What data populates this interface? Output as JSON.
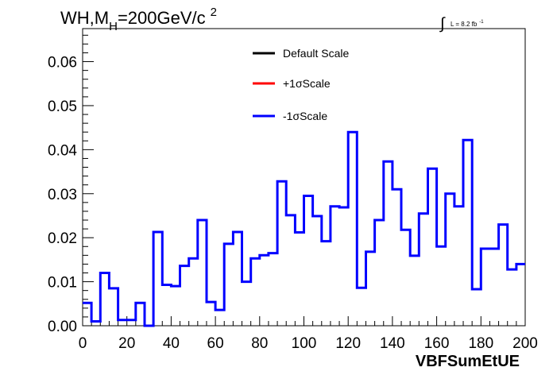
{
  "chart_data": {
    "type": "line",
    "title": "WH,M",
    "title_sub": "H",
    "title_rest": "=200GeV/c",
    "title_sup": "2",
    "lumi_prefix": "∫",
    "lumi_text": "L = 8.2 fb",
    "lumi_sup": "-1",
    "xlabel": "VBFSumEtUE",
    "ylabel": "",
    "xlim": [
      0,
      200
    ],
    "ylim": [
      0,
      0.0675
    ],
    "x_ticks": [
      0,
      20,
      40,
      60,
      80,
      100,
      120,
      140,
      160,
      180,
      200
    ],
    "y_ticks": [
      "0.00",
      "0.01",
      "0.02",
      "0.03",
      "0.04",
      "0.05",
      "0.06"
    ],
    "bin_width": 4,
    "legend_position": "top-center",
    "legend": [
      {
        "name": "Default Scale",
        "color": "#000000"
      },
      {
        "name": "+1σScale",
        "color": "#ff0000"
      },
      {
        "name": "-1σScale",
        "color": "#0000ff"
      }
    ],
    "series": [
      {
        "name": "-1σScale",
        "color": "#0000ff",
        "bin_edges_start": 0,
        "values": [
          0.0052,
          0.001,
          0.012,
          0.0085,
          0.0013,
          0.0013,
          0.0052,
          0.0,
          0.0213,
          0.0093,
          0.009,
          0.0136,
          0.0153,
          0.024,
          0.0054,
          0.0036,
          0.0186,
          0.0213,
          0.01,
          0.0153,
          0.016,
          0.0165,
          0.0328,
          0.0251,
          0.0212,
          0.0295,
          0.0249,
          0.0192,
          0.0271,
          0.0269,
          0.044,
          0.0086,
          0.0168,
          0.024,
          0.0373,
          0.031,
          0.0218,
          0.0159,
          0.0255,
          0.0357,
          0.018,
          0.03,
          0.0271,
          0.0422,
          0.0083,
          0.0175,
          0.0175,
          0.023,
          0.0128,
          0.014
        ]
      }
    ]
  }
}
